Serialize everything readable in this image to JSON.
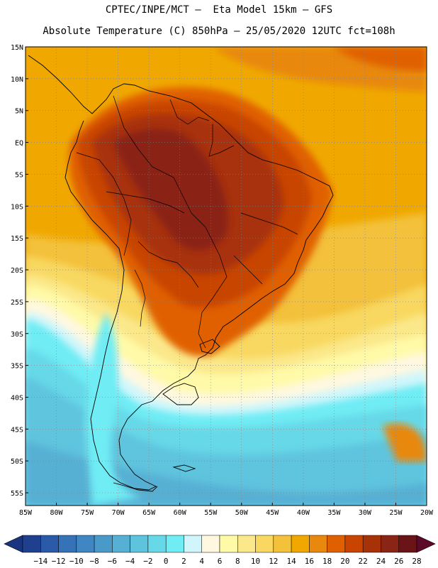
{
  "header": {
    "title_line1": "CPTEC/INPE/MCT –  Eta Model 15km – GFS",
    "title_line2": "Absolute Temperature (C) 850hPa – 25/05/2020 12UTC fct=108h"
  },
  "map": {
    "lat_labels": [
      "15N",
      "10N",
      "5N",
      "EQ",
      "5S",
      "10S",
      "15S",
      "20S",
      "25S",
      "30S",
      "35S",
      "40S",
      "45S",
      "50S",
      "55S"
    ],
    "lon_labels": [
      "85W",
      "80W",
      "75W",
      "70W",
      "65W",
      "60W",
      "55W",
      "50W",
      "45W",
      "40W",
      "35W",
      "30W",
      "25W",
      "20W"
    ],
    "lat_range": [
      15,
      -57
    ],
    "lon_range": [
      -85,
      -20
    ]
  },
  "colorbar": {
    "labels": [
      "-14",
      "-12",
      "-10",
      "-8",
      "-6",
      "-4",
      "-2",
      "0",
      "2",
      "4",
      "6",
      "8",
      "10",
      "12",
      "14",
      "16",
      "18",
      "20",
      "22",
      "24",
      "26",
      "28"
    ],
    "colors": [
      "#1f3f8f",
      "#2a5aa8",
      "#3572b8",
      "#3f86c2",
      "#4a9ac9",
      "#56b0d4",
      "#5ec4de",
      "#66d8e8",
      "#70ecf4",
      "#d0f6fb",
      "#fff8e0",
      "#fffaa8",
      "#fbe88a",
      "#f8d860",
      "#f3c13a",
      "#f0a800",
      "#e8880c",
      "#e06000",
      "#c84400",
      "#a83208",
      "#8a2414",
      "#6a1418"
    ],
    "under_color": "#1a3480",
    "over_color": "#5c0a28"
  }
}
